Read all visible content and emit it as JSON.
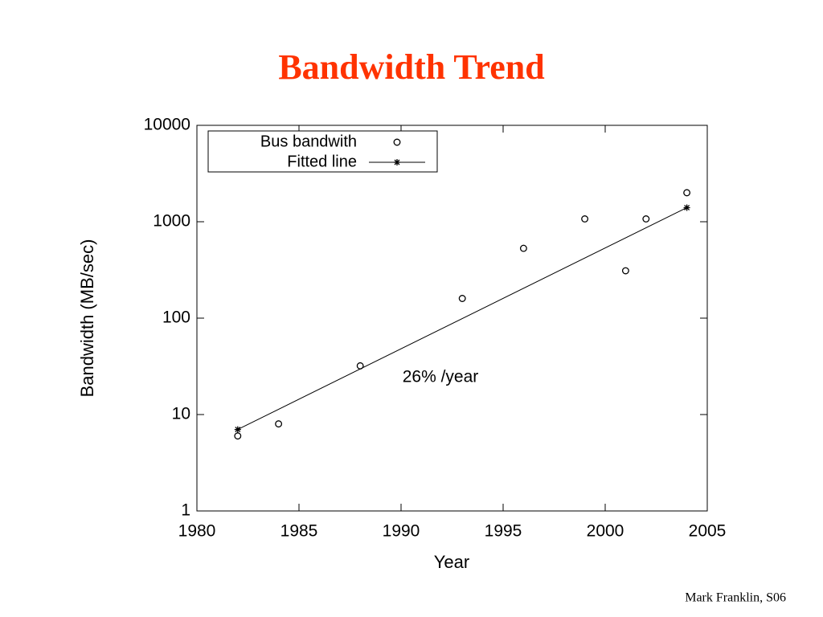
{
  "chart_data": {
    "type": "scatter",
    "title": "Bandwidth Trend",
    "x_label": "Year",
    "y_label": "Bandwidth (MB/sec)",
    "yscale": "log",
    "xlim": [
      1980,
      2005
    ],
    "xticks": [
      1980,
      1985,
      1990,
      1995,
      2000,
      2005
    ],
    "ylim": [
      1,
      10000
    ],
    "yticks": [
      1,
      10,
      100,
      1000,
      10000
    ],
    "legend": "top-left",
    "annotations": [
      "26% /year"
    ],
    "series": [
      {
        "name": "Bus bandwith",
        "color": "#000000",
        "marker": "circle",
        "x": [
          1982,
          1984,
          1988,
          1993,
          1996,
          1999,
          2001,
          2002,
          2004
        ],
        "values": [
          6,
          8,
          32,
          160,
          530,
          1070,
          310,
          1070,
          2000
        ]
      },
      {
        "name": "Fitted line",
        "color": "#000000",
        "marker": "star",
        "line": true,
        "x": [
          1982,
          2004
        ],
        "values": [
          7,
          1400
        ]
      }
    ]
  },
  "footer": "Mark Franklin, S06"
}
